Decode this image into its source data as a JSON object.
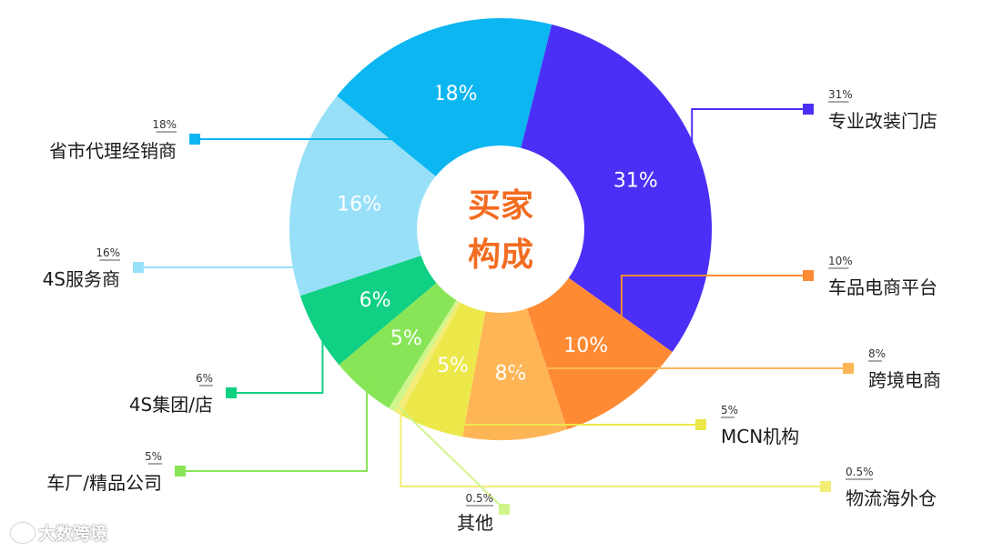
{
  "chart_data": {
    "type": "pie",
    "title": "买家构成",
    "title_lines": [
      "买家",
      "构成"
    ],
    "slices": [
      {
        "label": "专业改装门店",
        "value": 31,
        "value_label": "31%",
        "color": "#4b2ff6"
      },
      {
        "label": "车品电商平台",
        "value": 10,
        "value_label": "10%",
        "color": "#fe8a34"
      },
      {
        "label": "跨境电商",
        "value": 8,
        "value_label": "8%",
        "color": "#feb556"
      },
      {
        "label": "MCN机构",
        "value": 5,
        "value_label": "5%",
        "color": "#ece84a"
      },
      {
        "label": "物流海外仓",
        "value": 0.5,
        "value_label": "0.5%",
        "color": "#f3ec76"
      },
      {
        "label": "其他",
        "value": 0.5,
        "value_label": "0.5%",
        "color": "#cff58c"
      },
      {
        "label": "车厂/精品公司",
        "value": 5,
        "value_label": "5%",
        "color": "#88e557"
      },
      {
        "label": "4S集团/店",
        "value": 6,
        "value_label": "6%",
        "color": "#0fd083"
      },
      {
        "label": "4S服务商",
        "value": 16,
        "value_label": "16%",
        "color": "#97e0f8"
      },
      {
        "label": "省市代理经销商",
        "value": 18,
        "value_label": "18%",
        "color": "#0cb6f1"
      }
    ],
    "legend": "callouts"
  },
  "watermark": "大数跨境"
}
